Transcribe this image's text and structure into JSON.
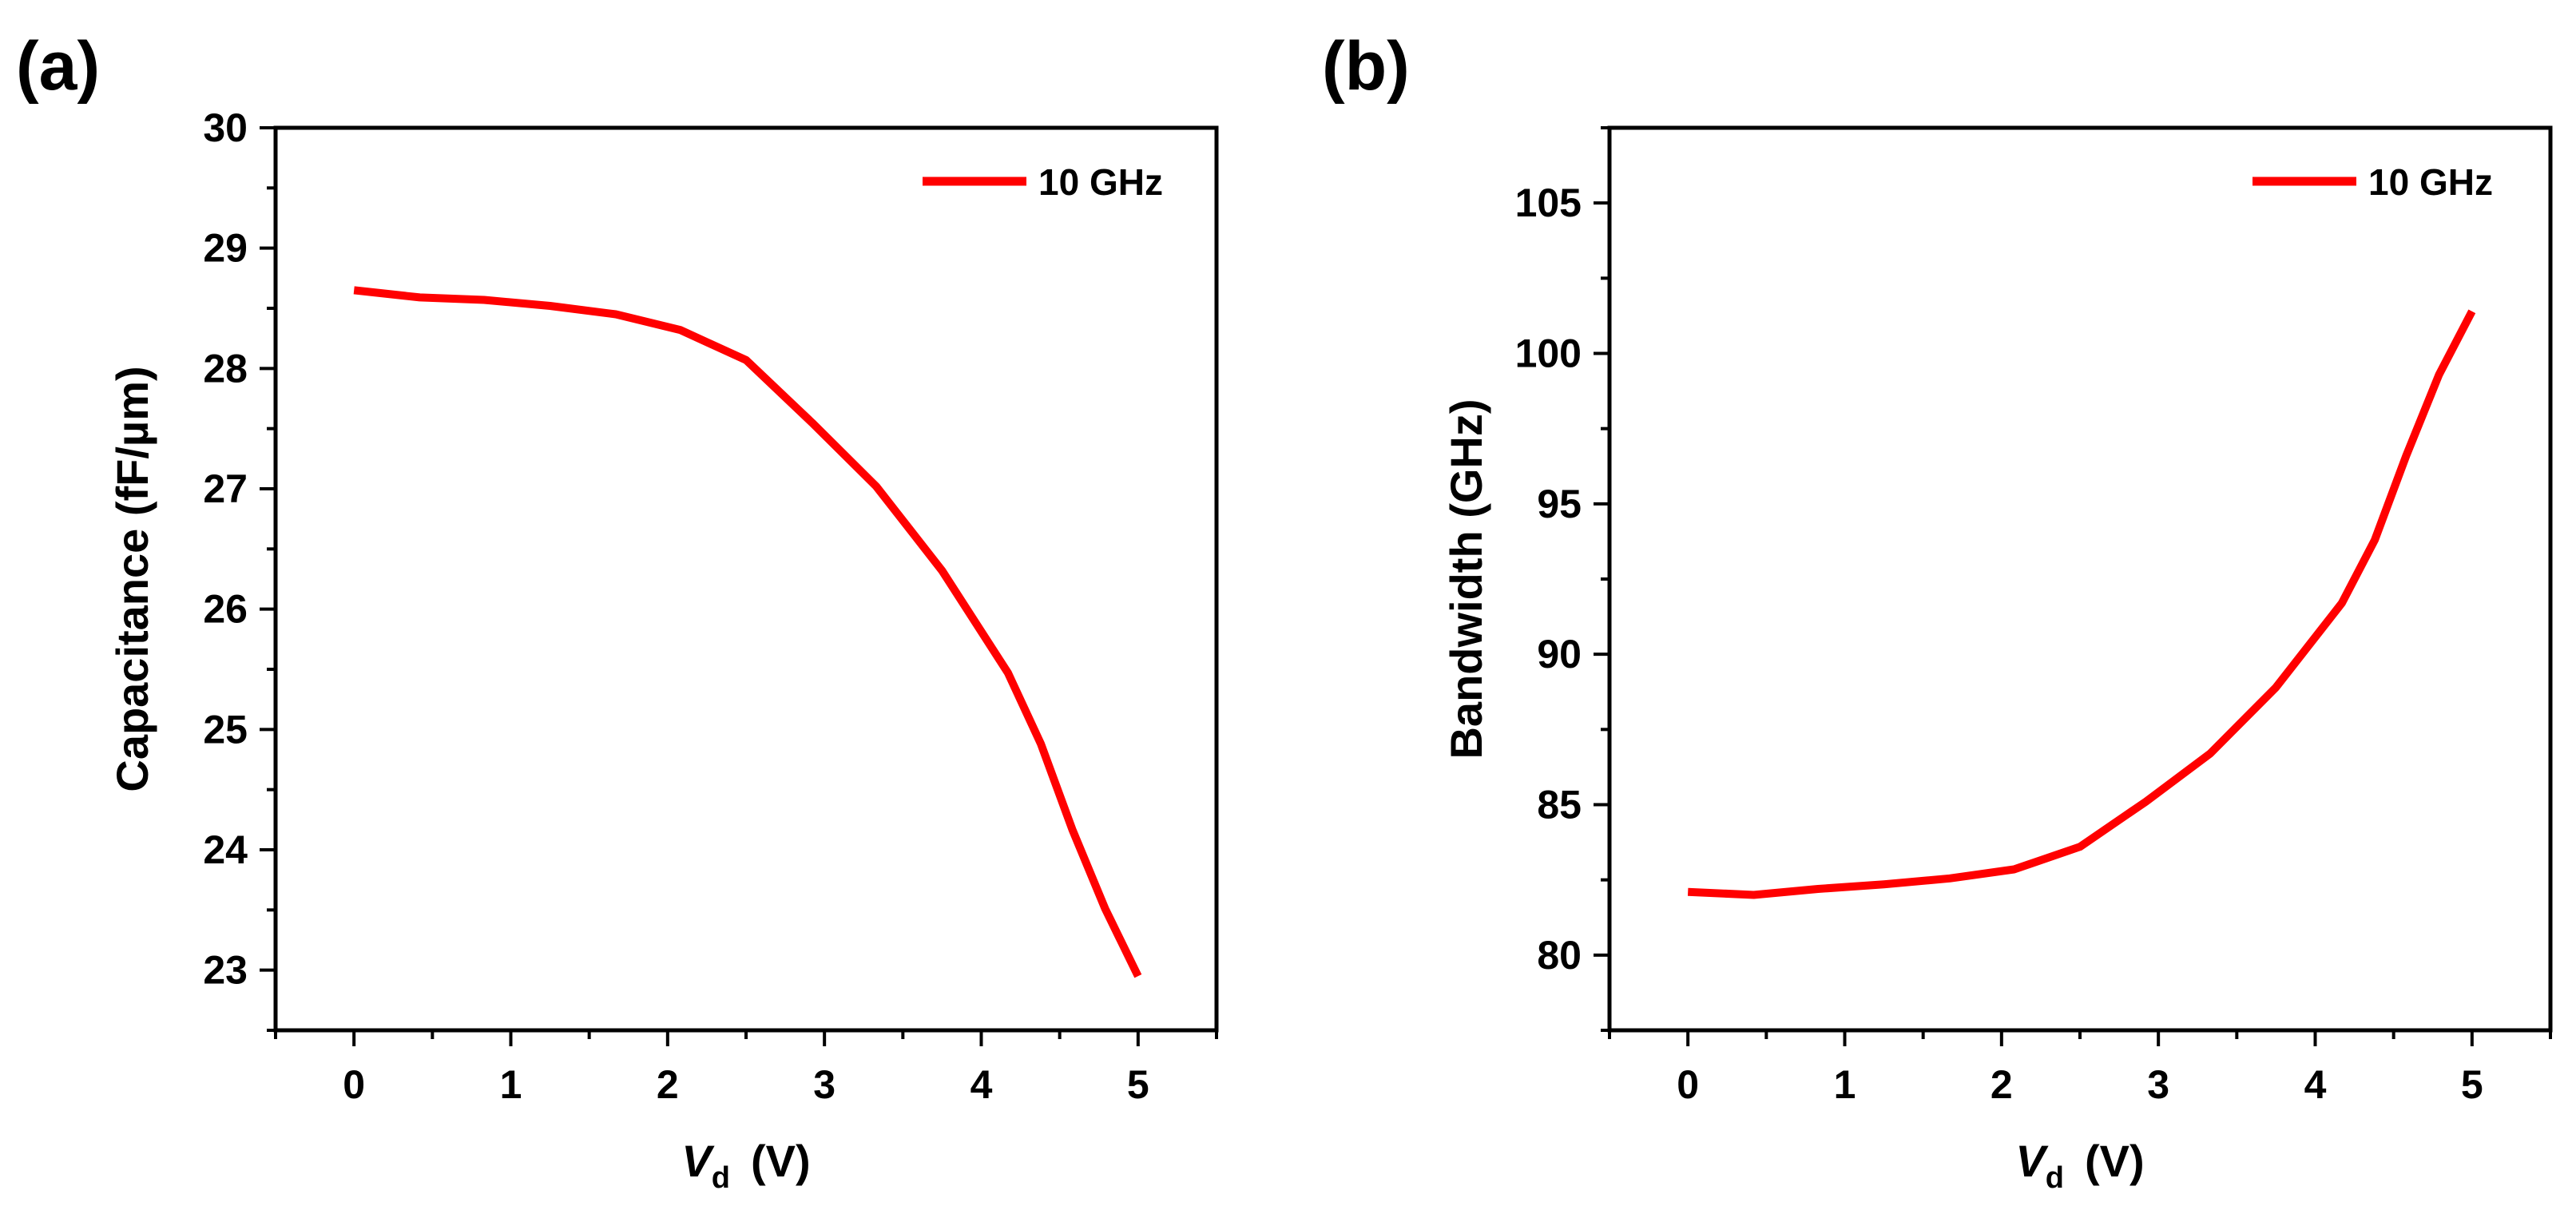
{
  "figure": {
    "panels": [
      "(a)",
      "(b)"
    ]
  },
  "chart_data": [
    {
      "panel_label": "(a)",
      "type": "line",
      "title": "",
      "xlabel_var": "V",
      "xlabel_sub": "d",
      "xlabel_unit": "(V)",
      "ylabel": "Capacitance (fF/µm)",
      "xlim": [
        -0.5,
        5.5
      ],
      "ylim": [
        22.5,
        30
      ],
      "xticks": [
        "0",
        "1",
        "2",
        "3",
        "4",
        "5"
      ],
      "xtick_values": [
        0,
        1,
        2,
        3,
        4,
        5
      ],
      "yticks": [
        "23",
        "24",
        "25",
        "26",
        "27",
        "28",
        "29",
        "30"
      ],
      "ytick_values": [
        23,
        24,
        25,
        26,
        27,
        28,
        29,
        30
      ],
      "legend_position": "top-right",
      "color": "#ff0000",
      "series": [
        {
          "name": "10 GHz",
          "x": [
            0,
            0.42,
            0.83,
            1.25,
            1.67,
            2.08,
            2.5,
            2.92,
            3.33,
            3.75,
            4.17,
            4.38,
            4.58,
            4.79,
            5.0
          ],
          "y": [
            28.65,
            28.59,
            28.57,
            28.52,
            28.45,
            28.32,
            28.07,
            27.55,
            27.02,
            26.32,
            25.47,
            24.88,
            24.17,
            23.51,
            22.95
          ]
        }
      ]
    },
    {
      "panel_label": "(b)",
      "type": "line",
      "title": "",
      "xlabel_var": "V",
      "xlabel_sub": "d",
      "xlabel_unit": "(V)",
      "ylabel": "Bandwidth (GHz)",
      "xlim": [
        -0.5,
        5.5
      ],
      "ylim": [
        77.5,
        107.5
      ],
      "xticks": [
        "0",
        "1",
        "2",
        "3",
        "4",
        "5"
      ],
      "xtick_values": [
        0,
        1,
        2,
        3,
        4,
        5
      ],
      "yticks": [
        "80",
        "85",
        "90",
        "95",
        "100",
        "105"
      ],
      "ytick_values": [
        80,
        85,
        90,
        95,
        100,
        105
      ],
      "legend_position": "top-right",
      "color": "#ff0000",
      "series": [
        {
          "name": "10 GHz",
          "x": [
            0,
            0.42,
            0.83,
            1.25,
            1.67,
            2.08,
            2.5,
            2.92,
            3.33,
            3.75,
            4.17,
            4.38,
            4.58,
            4.79,
            5.0
          ],
          "y": [
            82.1,
            82.0,
            82.2,
            82.35,
            82.55,
            82.85,
            83.6,
            85.1,
            86.7,
            88.9,
            91.7,
            93.8,
            96.6,
            99.3,
            101.4
          ]
        }
      ]
    }
  ]
}
